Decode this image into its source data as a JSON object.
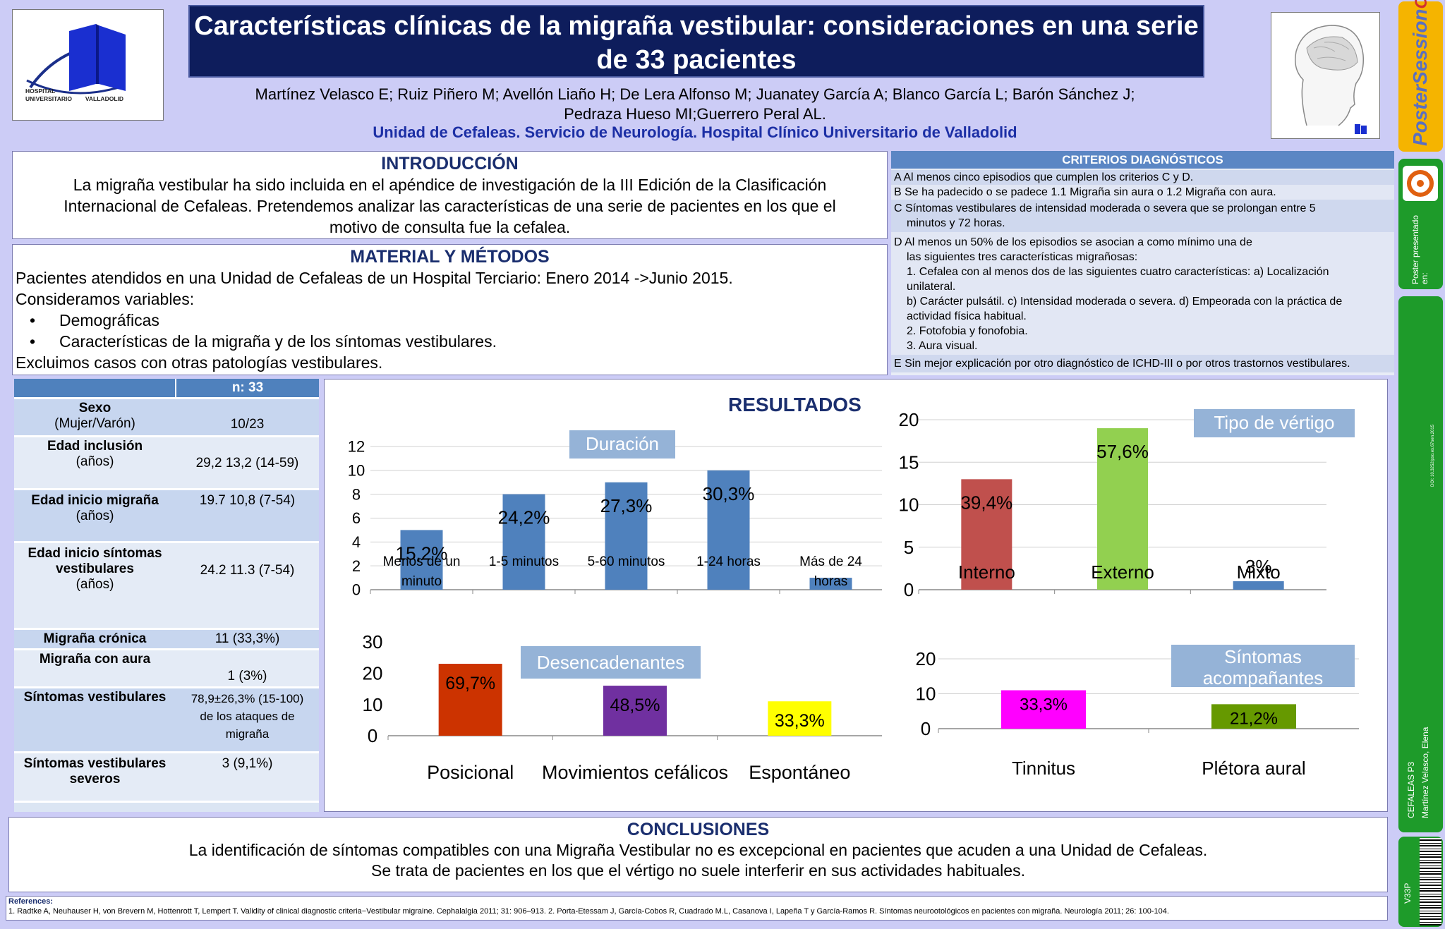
{
  "header": {
    "title": "Características clínicas de la migraña vestibular: consideraciones en una serie de 33 pacientes",
    "authors_line1": "Martínez Velasco E; Ruiz Piñero  M; Avellón Liaño H; De Lera Alfonso M;  Juanatey García A; Blanco García L; Barón Sánchez J;",
    "authors_line2": "Pedraza Hueso MI;Guerrero Peral AL.",
    "unit": "Unidad de Cefaleas. Servicio de Neurología. Hospital Clínico Universitario de Valladolid",
    "logo_hospital_line1": "HOSPITAL",
    "logo_hospital_line2": "UNIVERSITARIO",
    "logo_hospital_line3": "VALLADOLID"
  },
  "intro": {
    "heading": "INTRODUCCIÓN",
    "lines": [
      "La migraña vestibular ha sido incluida en el apéndice de investigación de la III Edición de la Clasificación",
      "Internacional de Cefaleas. Pretendemos analizar las características de una serie de pacientes en los que el",
      "motivo de consulta fue la cefalea."
    ]
  },
  "methods": {
    "heading": "MATERIAL Y MÉTODOS",
    "line1": "Pacientes atendidos en una Unidad de Cefaleas de un Hospital Terciario:  Enero 2014 ->Junio 2015.",
    "line2": "Consideramos variables:",
    "bullet_char": "•",
    "bullet1": "Demográficas",
    "bullet2": "Características de la migraña y de los síntomas vestibulares.",
    "line3": "Excluimos casos con otras patologías vestibulares."
  },
  "criteria": {
    "heading": "CRITERIOS DIAGNÓSTICOS",
    "A": "A Al menos cinco episodios que cumplen los criterios C y D.",
    "B": "B Se ha padecido o se padece 1.1 Migraña sin aura o 1.2 Migraña con aura.",
    "C1": "C Síntomas vestibulares de intensidad moderada o severa que se prolongan entre 5",
    "C2": "minutos y 72 horas.",
    "D1": "D Al menos un 50% de los episodios se asocian a como mínimo una de",
    "D2": "las siguientes tres características migrañosas:",
    "D3": "1. Cefalea con al menos dos de las siguientes cuatro características: a) Localización",
    "D4": "unilateral.",
    "D5": "b) Carácter pulsátil. c) Intensidad moderada o severa. d) Empeorada con la práctica de",
    "D6": "actividad física habitual.",
    "D7": "2. Fotofobia y fonofobia.",
    "D8": "3. Aura visual.",
    "E": "E Sin mejor explicación por otro diagnóstico de ICHD-III o por otros trastornos vestibulares."
  },
  "table": {
    "header": "n: 33",
    "rows": [
      {
        "k1": "Sexo",
        "k2": "(Mujer/Varón)",
        "v1": "10/23",
        "v2": ""
      },
      {
        "k1": "Edad inclusión",
        "k2": "(años)",
        "v1": "29,2     13,2 (14-59)",
        "v2": ""
      },
      {
        "k1": "Edad inicio migraña",
        "k2": "(años)",
        "v1": "19.7     10,8 (7-54)",
        "v2": ""
      },
      {
        "k1": "Edad inicio síntomas",
        "k2": "vestibulares",
        "k3": "(años)",
        "v1": "24.2     11.3 (7-54)",
        "v2": ""
      },
      {
        "k1": "Migraña crónica",
        "k2": "",
        "v1": "11 (33,3%)",
        "v2": ""
      },
      {
        "k1": "Migraña con aura",
        "k2": "",
        "v1": "1   (3%)",
        "v2": ""
      },
      {
        "k1": "Síntomas vestibulares",
        "k2": "",
        "v1": "78,9±26,3% (15-100)",
        "v2": "de los ataques de",
        "v3": "migraña"
      },
      {
        "k1": "Síntomas vestibulares",
        "k2": "severos",
        "v1": "3 (9,1%)",
        "v2": ""
      }
    ]
  },
  "results": {
    "heading": "RESULTADOS"
  },
  "chart_data": [
    {
      "type": "bar",
      "title": "Duración",
      "categories": [
        "Menos de un minuto",
        "1-5 minutos",
        "5-60 minutos",
        "1-24 horas",
        "Más de 24 horas"
      ],
      "values": [
        5,
        8,
        9,
        10,
        1
      ],
      "data_labels": [
        "15,2%",
        "24,2%",
        "27,3%",
        "30,3%",
        ""
      ],
      "ylim": [
        0,
        12
      ],
      "yticks": [
        0,
        2,
        4,
        6,
        8,
        10,
        12
      ],
      "colors": [
        "#4f81bd"
      ],
      "grid": true
    },
    {
      "type": "bar",
      "title": "Tipo de vértigo",
      "categories": [
        "Interno",
        "Externo",
        "Mixto"
      ],
      "values": [
        13,
        19,
        1
      ],
      "data_labels": [
        "39,4%",
        "57,6%",
        "3%"
      ],
      "ylim": [
        0,
        20
      ],
      "yticks": [
        0,
        5,
        10,
        15,
        20
      ],
      "colors": [
        "#c0504d",
        "#92d050",
        "#4f81bd"
      ],
      "grid": true
    },
    {
      "type": "bar",
      "title": "Desencadenantes",
      "categories": [
        "Posicional",
        "Movimientos cefálicos",
        "Espontáneo"
      ],
      "values": [
        23,
        16,
        11
      ],
      "data_labels": [
        "69,7%",
        "48,5%",
        "33,3%"
      ],
      "ylim": [
        0,
        30
      ],
      "yticks": [
        0,
        10,
        20,
        30
      ],
      "colors": [
        "#cc3300",
        "#7030a0",
        "#ffff00"
      ],
      "grid": false
    },
    {
      "type": "bar",
      "title": "Síntomas acompañantes",
      "categories": [
        "Tinnitus",
        "Plétora aural"
      ],
      "values": [
        11,
        7
      ],
      "data_labels": [
        "33,3%",
        "21,2%"
      ],
      "ylim": [
        0,
        20
      ],
      "yticks": [
        0,
        10,
        20
      ],
      "colors": [
        "#ff00ff",
        "#669900"
      ],
      "grid": true
    }
  ],
  "conclusions": {
    "heading": "CONCLUSIONES",
    "line1": "La identificación de síntomas compatibles con una Migraña Vestibular no es excepcional en pacientes que acuden a una Unidad de Cefaleas.",
    "line2": "Se trata de pacientes en los que el vértigo no suele interferir en sus actividades habituales."
  },
  "references": {
    "label": "References:",
    "text": "1. Radtke A, Neuhauser H, von Brevern M, Hottenrott T, Lempert T. Validity of clinical diagnostic criteria−Vestibular migraine. Cephalalgia 2011; 31: 906–913.   2. Porta-Etessam J, García-Cobos R, Cuadrado M.L, Casanova I, Lapeña T y García-Ramos R. Síntomas neurootológicos en pacientes con migraña. Neurología 2011; 26: 100-104."
  },
  "sidebar": {
    "brand1": "Poster",
    "brand2": "Session",
    "brand3": "Online",
    "presented": "Poster presentado en:",
    "code": "CEFALEAS P3",
    "author": "Martínez Velasco, Elena",
    "doi": "DOI: 10.3252/pso.es.67sen.2015",
    "v": "V33P",
    "colors": {
      "orange": "#f5b400",
      "green": "#1e9b2a"
    }
  }
}
